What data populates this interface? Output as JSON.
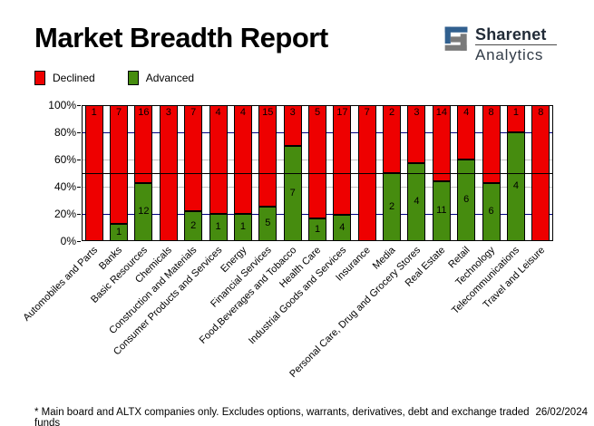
{
  "header": {
    "title": "Market Breadth Report",
    "brand": {
      "name": "Sharenet",
      "sub": "Analytics"
    }
  },
  "legend": [
    {
      "label": "Declined",
      "color": "#ee0000"
    },
    {
      "label": "Advanced",
      "color": "#468c0f"
    }
  ],
  "chart_data": {
    "type": "bar",
    "stacked": true,
    "percent_axis": true,
    "title": "Market Breadth Report",
    "categories": [
      "Automobiles and Parts",
      "Banks",
      "Basic Resources",
      "Chemicals",
      "Construction and Materials",
      "Consumer Products and Services",
      "Energy",
      "Financial Services",
      "Food,Beverages and Tobacco",
      "Health Care",
      "Industrial Goods and Services",
      "Insurance",
      "Media",
      "Personal Care, Drug and Grocery Stores",
      "Real Estate",
      "Retail",
      "Technology",
      "Telecommunications",
      "Travel and Leisure"
    ],
    "series": [
      {
        "name": "Declined",
        "color": "#ee0000",
        "values": [
          1,
          7,
          16,
          3,
          7,
          4,
          4,
          15,
          3,
          5,
          17,
          7,
          2,
          3,
          14,
          4,
          8,
          1,
          8
        ]
      },
      {
        "name": "Advanced",
        "color": "#468c0f",
        "values": [
          0,
          1,
          12,
          0,
          2,
          1,
          1,
          5,
          7,
          1,
          4,
          0,
          2,
          4,
          11,
          6,
          6,
          4,
          0
        ]
      }
    ],
    "y_ticks": [
      "0%",
      "20%",
      "40%",
      "60%",
      "80%",
      "100%"
    ],
    "ylim": [
      0,
      100
    ],
    "gridlines": [
      {
        "pct": 20,
        "color": "#000080"
      },
      {
        "pct": 40,
        "color": "#c0c0c0"
      },
      {
        "pct": 50,
        "color": "#000000"
      },
      {
        "pct": 60,
        "color": "#c0c0c0"
      },
      {
        "pct": 80,
        "color": "#000080"
      }
    ],
    "legend_position": "top-left",
    "bar_value_labels": true
  },
  "footer": {
    "note": "* Main board and ALTX companies only. Excludes options, warrants, derivatives, debt and exchange traded funds",
    "date": "26/02/2024"
  }
}
